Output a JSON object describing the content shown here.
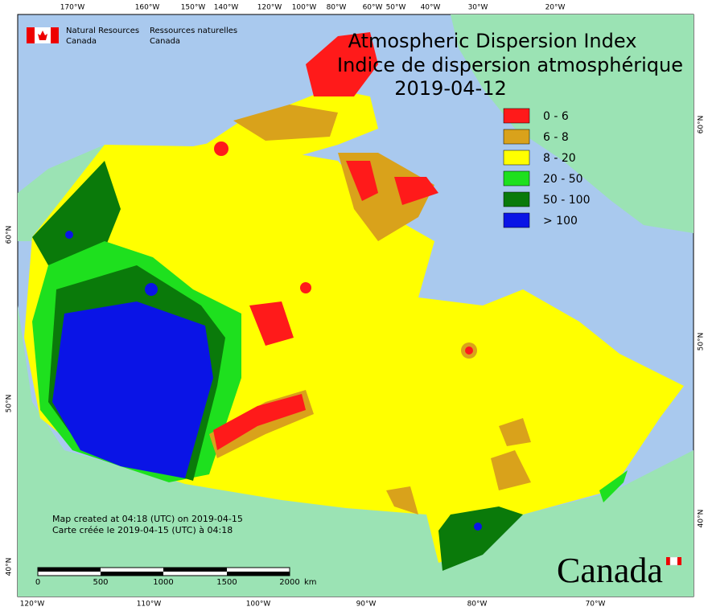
{
  "header": {
    "agency_en": [
      "Natural Resources",
      "Canada"
    ],
    "agency_fr": [
      "Ressources naturelles",
      "Canada"
    ]
  },
  "title": {
    "line1": "Atmospheric Dispersion Index",
    "line2": "Indice de dispersion atmosphérique",
    "date": "2019-04-12"
  },
  "legend": [
    {
      "label": "0 - 6",
      "color": "#ff1a1a"
    },
    {
      "label": "6 - 8",
      "color": "#d9a21b"
    },
    {
      "label": "8 - 20",
      "color": "#ffff00"
    },
    {
      "label": "20 - 50",
      "color": "#1ee01e"
    },
    {
      "label": "50 - 100",
      "color": "#0a7a0a"
    },
    {
      "label": "> 100",
      "color": "#0a14e6"
    }
  ],
  "graticule": {
    "top": [
      "170°W",
      "160°W",
      "150°W",
      "140°W",
      "120°W",
      "100°W",
      "80°W",
      "60°W",
      "50°W",
      "40°W",
      "30°W",
      "20°W"
    ],
    "bottom": [
      "120°W",
      "110°W",
      "100°W",
      "90°W",
      "80°W",
      "70°W"
    ],
    "left": [
      "60°N",
      "50°N",
      "40°N"
    ],
    "right": [
      "60°N",
      "50°N",
      "40°N"
    ]
  },
  "notes": [
    "Map created at 04:18 (UTC) on 2019-04-15",
    "Carte créée le 2019-04-15 (UTC) à 04:18"
  ],
  "scale_bar": {
    "labels": [
      "0",
      "500",
      "1000",
      "1500",
      "2000"
    ],
    "unit": "km"
  },
  "wordmark": "Canada"
}
